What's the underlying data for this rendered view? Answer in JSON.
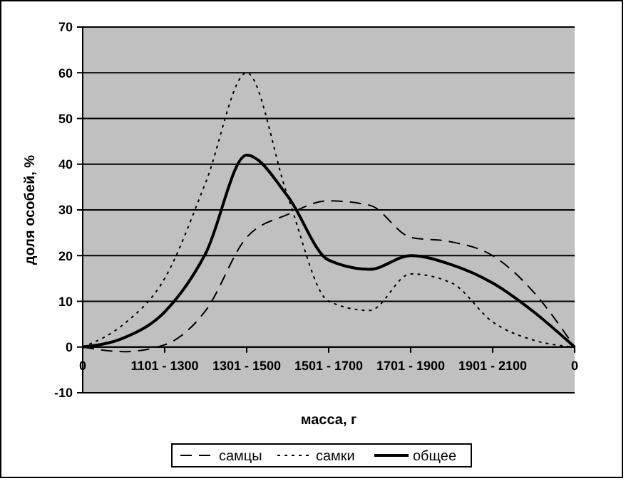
{
  "chart_data": {
    "type": "line",
    "xlabel": "масса, г",
    "ylabel": "доля особей, %",
    "categories": [
      "0",
      null,
      "1101 - 1300",
      null,
      "1301 - 1500",
      null,
      "1501 - 1700",
      null,
      "1701 - 1900",
      null,
      "1901 - 2100",
      null,
      "0"
    ],
    "series": [
      {
        "name": "самцы",
        "color": "#000000",
        "line_style": "dashed",
        "values": [
          0,
          -1,
          0.5,
          8,
          24,
          29,
          32,
          31,
          24,
          23,
          20,
          12,
          0
        ]
      },
      {
        "name": "самки",
        "color": "#000000",
        "line_style": "dotted",
        "values": [
          0,
          5,
          15,
          36,
          60,
          33,
          10,
          8,
          16,
          14,
          5.5,
          1.5,
          0
        ]
      },
      {
        "name": "общее",
        "color": "#000000",
        "line_style": "solid",
        "values": [
          0,
          2,
          7.7,
          20.5,
          42,
          33,
          19,
          17,
          20,
          18,
          14,
          7.7,
          0
        ]
      }
    ],
    "ylim": [
      -10,
      70
    ],
    "yticks": [
      -10,
      0,
      10,
      20,
      30,
      40,
      50,
      60,
      70
    ],
    "grid": "y",
    "legend": "bottom",
    "marker": "none"
  }
}
